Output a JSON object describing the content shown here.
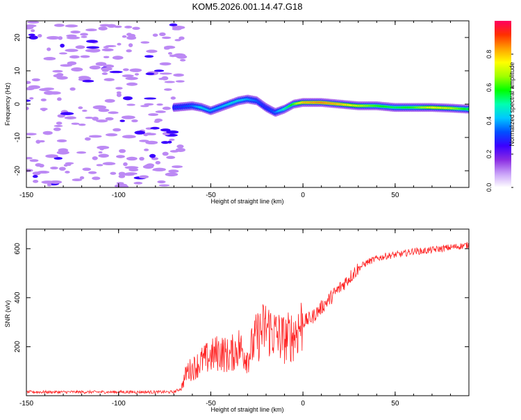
{
  "page_title": "KOM5.2026.001.14.47.G18",
  "colorbar": {
    "label": "Normalized spectral amplitude",
    "ticks": [
      "0.0",
      "0.2",
      "0.4",
      "0.6",
      "0.8"
    ],
    "tick_values": [
      0.0,
      0.2,
      0.4,
      0.6,
      0.8
    ],
    "range": [
      0,
      1
    ],
    "colors": [
      "#ffffff",
      "#c8a0f8",
      "#8a2be2",
      "#3a00ff",
      "#0050ff",
      "#00c8ff",
      "#00ffb0",
      "#00ff00",
      "#a0ff00",
      "#ffff00",
      "#ffa000",
      "#ff3000",
      "#ff0060"
    ]
  },
  "chart_data": [
    {
      "type": "heatmap",
      "title": "",
      "xlabel": "Height of straight line (km)",
      "ylabel": "Frequency (Hz)",
      "xlim": [
        -150,
        90
      ],
      "ylim": [
        -25,
        25
      ],
      "xticks": [
        -150,
        -100,
        -50,
        0,
        50
      ],
      "yticks": [
        -20,
        -10,
        0,
        10,
        20
      ],
      "xtick_labels": [
        "-150",
        "-100",
        "-50",
        "0",
        "50"
      ],
      "ytick_labels": [
        "-20",
        "-10",
        "0",
        "10",
        "20"
      ],
      "ridge": {
        "x": [
          -70,
          -60,
          -55,
          -50,
          -45,
          -40,
          -35,
          -30,
          -25,
          -20,
          -15,
          -10,
          -5,
          0,
          10,
          20,
          30,
          40,
          50,
          60,
          70,
          80,
          90
        ],
        "y": [
          -1,
          -0.5,
          -1,
          -2,
          -1,
          0,
          1,
          1.5,
          1,
          -1,
          -2.5,
          -1.5,
          0,
          0.5,
          0.5,
          0,
          -0.5,
          -0.5,
          -1,
          -1,
          -1,
          -1.2,
          -1.5
        ],
        "amplitude": [
          0.3,
          0.35,
          0.45,
          0.4,
          0.4,
          0.45,
          0.45,
          0.4,
          0.35,
          0.3,
          0.35,
          0.5,
          0.6,
          0.8,
          0.85,
          0.8,
          0.7,
          0.6,
          0.55,
          0.6,
          0.75,
          0.7,
          0.55
        ]
      },
      "noise_region": {
        "x_range": [
          -150,
          -65
        ],
        "amplitude": 0.1
      }
    },
    {
      "type": "line",
      "title": "",
      "xlabel": "Height of straight line (km)",
      "ylabel": "SNR (v/v)",
      "xlim": [
        -150,
        90
      ],
      "ylim": [
        0,
        680
      ],
      "xticks": [
        -150,
        -100,
        -50,
        0,
        50
      ],
      "yticks": [
        200,
        400,
        600
      ],
      "xtick_labels": [
        "-150",
        "-100",
        "-50",
        "0",
        "50"
      ],
      "ytick_labels": [
        "200",
        "400",
        "600"
      ],
      "color": "#ff2020",
      "series": [
        {
          "name": "SNR",
          "x": [
            -150,
            -140,
            -130,
            -120,
            -110,
            -100,
            -90,
            -80,
            -70,
            -66,
            -63,
            -60,
            -55,
            -50,
            -45,
            -40,
            -35,
            -30,
            -25,
            -20,
            -15,
            -10,
            -5,
            0,
            5,
            10,
            15,
            20,
            25,
            30,
            35,
            40,
            45,
            50,
            55,
            60,
            65,
            70,
            75,
            80,
            85,
            90
          ],
          "y": [
            15,
            15,
            15,
            15,
            15,
            15,
            15,
            15,
            15,
            30,
            100,
            110,
            140,
            160,
            180,
            160,
            200,
            160,
            240,
            280,
            250,
            230,
            250,
            300,
            320,
            360,
            400,
            440,
            480,
            520,
            545,
            560,
            570,
            575,
            580,
            590,
            590,
            595,
            600,
            605,
            610,
            615
          ]
        }
      ]
    }
  ]
}
